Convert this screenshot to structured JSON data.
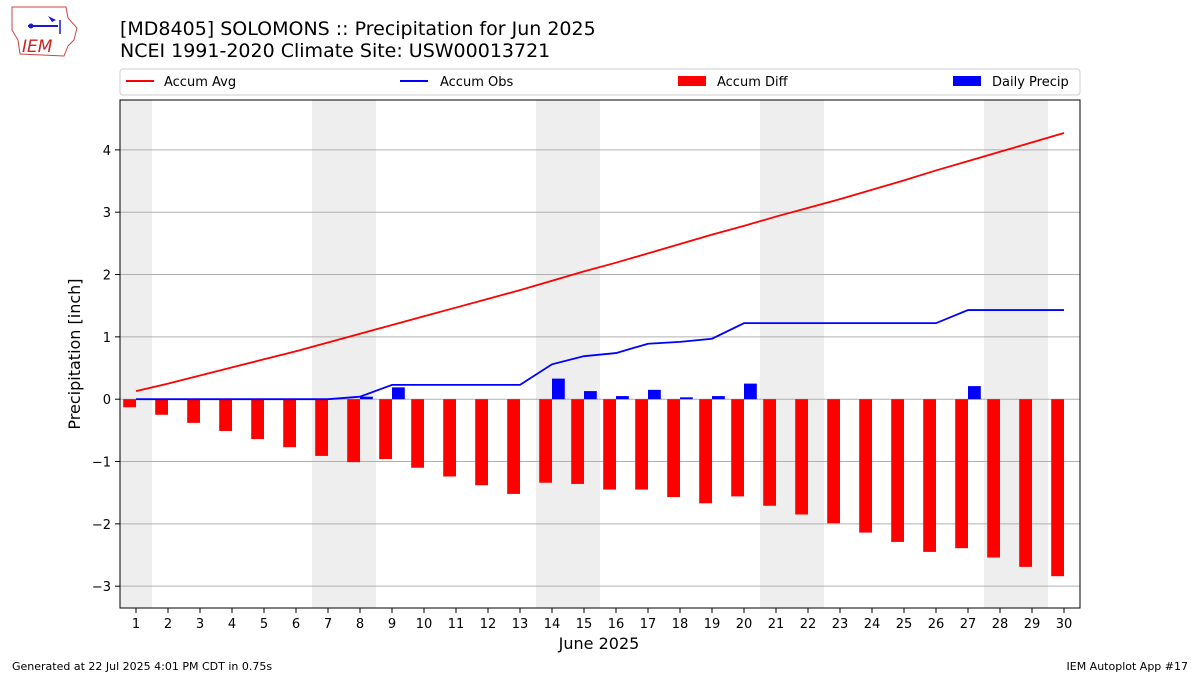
{
  "header": {
    "title_line1": "[MD8405] SOLOMONS :: Precipitation for Jun 2025",
    "title_line2": "NCEI 1991-2020 Climate Site: USW00013721"
  },
  "logo": {
    "text": "IEM"
  },
  "footer": {
    "left": "Generated at 22 Jul 2025 4:01 PM CDT in 0.75s",
    "right": "IEM Autoplot App #17"
  },
  "colors": {
    "accum_avg": "#ff0000",
    "accum_obs": "#0000ff",
    "accum_diff": "#ff0000",
    "daily_precip": "#0000ff",
    "weekend_shade": "#eeeeee",
    "grid": "#b0b0b0"
  },
  "chart_data": {
    "type": "bar",
    "xlabel": "June 2025",
    "ylabel": "Precipitation [inch]",
    "ylim": [
      -3.35,
      4.8
    ],
    "xlim": [
      0.5,
      30.5
    ],
    "yticks": [
      -3,
      -2,
      -1,
      0,
      1,
      2,
      3,
      4
    ],
    "ytick_labels": [
      "−3",
      "−2",
      "−1",
      "0",
      "1",
      "2",
      "3",
      "4"
    ],
    "grid": "horizontal",
    "legend_position": "top",
    "weekend_days": [
      1,
      7,
      8,
      14,
      15,
      21,
      22,
      28,
      29
    ],
    "days": [
      1,
      2,
      3,
      4,
      5,
      6,
      7,
      8,
      9,
      10,
      11,
      12,
      13,
      14,
      15,
      16,
      17,
      18,
      19,
      20,
      21,
      22,
      23,
      24,
      25,
      26,
      27,
      28,
      29,
      30
    ],
    "series": [
      {
        "name": "Accum Avg",
        "kind": "line",
        "values": [
          0.13,
          0.25,
          0.38,
          0.51,
          0.64,
          0.77,
          0.91,
          1.05,
          1.19,
          1.33,
          1.47,
          1.61,
          1.75,
          1.9,
          2.05,
          2.19,
          2.34,
          2.49,
          2.64,
          2.78,
          2.93,
          3.07,
          3.21,
          3.36,
          3.51,
          3.67,
          3.82,
          3.97,
          4.12,
          4.27
        ]
      },
      {
        "name": "Accum Obs",
        "kind": "line",
        "values": [
          0,
          0,
          0,
          0,
          0,
          0,
          0,
          0.04,
          0.23,
          0.23,
          0.23,
          0.23,
          0.23,
          0.56,
          0.69,
          0.74,
          0.89,
          0.92,
          0.97,
          1.22,
          1.22,
          1.22,
          1.22,
          1.22,
          1.22,
          1.22,
          1.43,
          1.43,
          1.43,
          1.43
        ]
      },
      {
        "name": "Accum Diff",
        "kind": "bar",
        "values": [
          -0.13,
          -0.25,
          -0.38,
          -0.51,
          -0.64,
          -0.77,
          -0.91,
          -1.01,
          -0.96,
          -1.1,
          -1.24,
          -1.38,
          -1.52,
          -1.34,
          -1.36,
          -1.45,
          -1.45,
          -1.57,
          -1.67,
          -1.56,
          -1.71,
          -1.85,
          -1.99,
          -2.14,
          -2.29,
          -2.45,
          -2.39,
          -2.54,
          -2.69,
          -2.84
        ]
      },
      {
        "name": "Daily Precip",
        "kind": "bar",
        "values": [
          0,
          0,
          0,
          0,
          0,
          0,
          0,
          0.04,
          0.19,
          0,
          0,
          0,
          0,
          0.33,
          0.13,
          0.05,
          0.15,
          0.03,
          0.05,
          0.25,
          0,
          0,
          0,
          0,
          0,
          0,
          0.21,
          0,
          0,
          0
        ]
      }
    ]
  }
}
